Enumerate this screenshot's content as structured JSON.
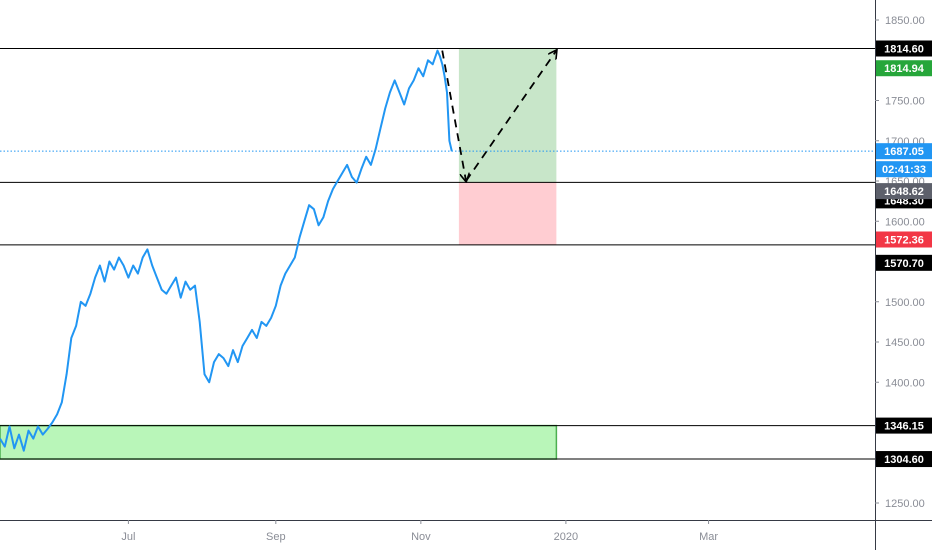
{
  "chart_data": {
    "type": "line",
    "title": "",
    "ylim": [
      1235,
      1875
    ],
    "grid": false,
    "y_ticks": [
      "1850.00",
      "1750.00",
      "1700.00",
      "1650.00",
      "1600.00",
      "1500.00",
      "1450.00",
      "1400.00",
      "1250.00"
    ],
    "x_ticks": [
      {
        "label": "Jul",
        "x": 30
      },
      {
        "label": "Sep",
        "x": 92
      },
      {
        "label": "Nov",
        "x": 153
      },
      {
        "label": "2020",
        "x": 214
      },
      {
        "label": "Mar",
        "x": 274
      }
    ],
    "x_range": [
      -24,
      344
    ],
    "series": [
      {
        "color": "#2196f3",
        "points": [
          [
            -24,
            1330
          ],
          [
            -22,
            1320
          ],
          [
            -20,
            1345
          ],
          [
            -18,
            1318
          ],
          [
            -16,
            1335
          ],
          [
            -14,
            1315
          ],
          [
            -12,
            1340
          ],
          [
            -10,
            1330
          ],
          [
            -8,
            1345
          ],
          [
            -6,
            1335
          ],
          [
            -4,
            1342
          ],
          [
            -2,
            1350
          ],
          [
            0,
            1360
          ],
          [
            2,
            1375
          ],
          [
            4,
            1410
          ],
          [
            6,
            1455
          ],
          [
            8,
            1470
          ],
          [
            10,
            1500
          ],
          [
            12,
            1495
          ],
          [
            14,
            1510
          ],
          [
            16,
            1530
          ],
          [
            18,
            1545
          ],
          [
            20,
            1525
          ],
          [
            22,
            1550
          ],
          [
            24,
            1540
          ],
          [
            26,
            1555
          ],
          [
            28,
            1545
          ],
          [
            30,
            1530
          ],
          [
            32,
            1545
          ],
          [
            34,
            1535
          ],
          [
            36,
            1555
          ],
          [
            38,
            1565
          ],
          [
            40,
            1545
          ],
          [
            42,
            1530
          ],
          [
            44,
            1515
          ],
          [
            46,
            1510
          ],
          [
            48,
            1520
          ],
          [
            50,
            1530
          ],
          [
            52,
            1505
          ],
          [
            54,
            1525
          ],
          [
            56,
            1515
          ],
          [
            58,
            1520
          ],
          [
            60,
            1475
          ],
          [
            62,
            1410
          ],
          [
            64,
            1400
          ],
          [
            66,
            1425
          ],
          [
            68,
            1435
          ],
          [
            70,
            1430
          ],
          [
            72,
            1420
          ],
          [
            74,
            1440
          ],
          [
            76,
            1425
          ],
          [
            78,
            1445
          ],
          [
            80,
            1455
          ],
          [
            82,
            1465
          ],
          [
            84,
            1455
          ],
          [
            86,
            1475
          ],
          [
            88,
            1470
          ],
          [
            90,
            1480
          ],
          [
            92,
            1495
          ],
          [
            94,
            1520
          ],
          [
            96,
            1535
          ],
          [
            98,
            1545
          ],
          [
            100,
            1555
          ],
          [
            102,
            1580
          ],
          [
            104,
            1600
          ],
          [
            106,
            1620
          ],
          [
            108,
            1615
          ],
          [
            110,
            1595
          ],
          [
            112,
            1605
          ],
          [
            114,
            1625
          ],
          [
            116,
            1640
          ],
          [
            118,
            1650
          ],
          [
            120,
            1660
          ],
          [
            122,
            1670
          ],
          [
            124,
            1655
          ],
          [
            126,
            1648
          ],
          [
            128,
            1665
          ],
          [
            130,
            1680
          ],
          [
            132,
            1670
          ],
          [
            134,
            1690
          ],
          [
            136,
            1715
          ],
          [
            138,
            1740
          ],
          [
            140,
            1760
          ],
          [
            142,
            1775
          ],
          [
            144,
            1760
          ],
          [
            146,
            1745
          ],
          [
            148,
            1765
          ],
          [
            150,
            1775
          ],
          [
            152,
            1790
          ],
          [
            154,
            1780
          ],
          [
            156,
            1800
          ],
          [
            158,
            1795
          ],
          [
            160,
            1812
          ],
          [
            161,
            1805
          ],
          [
            162,
            1795
          ],
          [
            163,
            1780
          ],
          [
            164,
            1760
          ],
          [
            165,
            1700
          ],
          [
            166,
            1687
          ]
        ]
      }
    ],
    "levels": [
      {
        "value": 1814.6,
        "label": "1814.60"
      },
      {
        "value": 1648.3,
        "label": "1648.30"
      },
      {
        "value": 1570.7,
        "label": "1570.70"
      },
      {
        "value": 1346.15,
        "label": "1346.15"
      },
      {
        "value": 1304.6,
        "label": "1304.60"
      }
    ],
    "current_price": {
      "value": 1687.05,
      "label": "1687.05",
      "countdown": "02:41:33",
      "color": "#2196f3"
    },
    "price_tags": [
      {
        "value": 1814.94,
        "label": "1814.94",
        "color": "#26a63a"
      },
      {
        "value": 1648.62,
        "label": "1648.62",
        "color": "#5d606b"
      },
      {
        "value": 1572.36,
        "label": "1572.36",
        "color": "#f23645"
      }
    ],
    "position": {
      "x_start": 169,
      "x_end": 210,
      "entry": 1648.3,
      "target": 1814.6,
      "stop": 1570.7,
      "profit_color": "#c8e6c9",
      "loss_color": "#ffcdd2"
    },
    "demand_zone": {
      "x_start": -24,
      "x_end": 210,
      "top": 1346.15,
      "bottom": 1304.6,
      "color": "#b9f6b9",
      "border": "#4caf50"
    },
    "arrows": [
      {
        "from": [
          162,
          1812
        ],
        "to": [
          172,
          1650
        ]
      },
      {
        "from": [
          172,
          1650
        ],
        "to": [
          210,
          1812
        ]
      }
    ]
  }
}
